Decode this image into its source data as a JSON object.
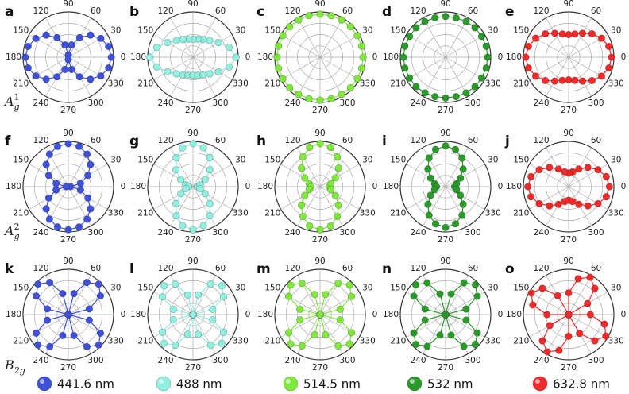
{
  "chart_data": [
    {
      "type": "polar",
      "panel": "a",
      "color": "#3f51d8",
      "theta": [
        0,
        15,
        30,
        45,
        60,
        75,
        90,
        105,
        120,
        135,
        150,
        165,
        180,
        195,
        210,
        225,
        240,
        255,
        270,
        285,
        300,
        315,
        330,
        345
      ],
      "values": [
        0.95,
        0.92,
        0.83,
        0.69,
        0.5,
        0.28,
        0.05,
        0.28,
        0.5,
        0.69,
        0.83,
        0.92,
        0.95,
        0.92,
        0.83,
        0.69,
        0.5,
        0.28,
        0.05,
        0.28,
        0.5,
        0.69,
        0.83,
        0.92
      ],
      "rlim": [
        0,
        1
      ],
      "rticks": [
        0.25,
        0.5,
        0.75,
        1
      ],
      "thetaticks": [
        0,
        30,
        60,
        90,
        120,
        150,
        180,
        210,
        240,
        270,
        300,
        330
      ]
    },
    {
      "type": "polar",
      "panel": "b",
      "color": "#8ff0e0",
      "theta": [
        0,
        15,
        30,
        45,
        60,
        75,
        90,
        105,
        120,
        135,
        150,
        165,
        180,
        195,
        210,
        225,
        240,
        255,
        270,
        285,
        300,
        315,
        330,
        345
      ],
      "values": [
        0.95,
        0.83,
        0.65,
        0.52,
        0.45,
        0.41,
        0.4,
        0.41,
        0.45,
        0.52,
        0.65,
        0.83,
        0.95,
        0.83,
        0.65,
        0.52,
        0.45,
        0.41,
        0.4,
        0.41,
        0.45,
        0.52,
        0.65,
        0.83
      ],
      "rlim": [
        0,
        1
      ],
      "rticks": [
        0.25,
        0.5,
        0.75,
        1
      ],
      "thetaticks": [
        0,
        30,
        60,
        90,
        120,
        150,
        180,
        210,
        240,
        270,
        300,
        330
      ]
    },
    {
      "type": "polar",
      "panel": "c",
      "color": "#80e83c",
      "theta": [
        0,
        15,
        30,
        45,
        60,
        75,
        90,
        105,
        120,
        135,
        150,
        165,
        180,
        195,
        210,
        225,
        240,
        255,
        270,
        285,
        300,
        315,
        330,
        345
      ],
      "values": [
        0.95,
        0.95,
        0.95,
        0.95,
        0.95,
        0.95,
        0.95,
        0.95,
        0.95,
        0.95,
        0.95,
        0.95,
        0.95,
        0.95,
        0.95,
        0.95,
        0.95,
        0.95,
        0.95,
        0.95,
        0.95,
        0.95,
        0.95,
        0.95
      ],
      "rlim": [
        0,
        1
      ],
      "rticks": [
        0.25,
        0.5,
        0.75,
        1
      ],
      "thetaticks": [
        0,
        30,
        60,
        90,
        120,
        150,
        180,
        210,
        240,
        270,
        300,
        330
      ]
    },
    {
      "type": "polar",
      "panel": "d",
      "color": "#2a9a2a",
      "theta": [
        0,
        15,
        30,
        45,
        60,
        75,
        90,
        105,
        120,
        135,
        150,
        165,
        180,
        195,
        210,
        225,
        240,
        255,
        270,
        285,
        300,
        315,
        330,
        345
      ],
      "values": [
        0.93,
        0.93,
        0.92,
        0.92,
        0.91,
        0.9,
        0.9,
        0.9,
        0.91,
        0.92,
        0.92,
        0.93,
        0.93,
        0.93,
        0.92,
        0.92,
        0.91,
        0.9,
        0.9,
        0.9,
        0.91,
        0.92,
        0.92,
        0.93
      ],
      "rlim": [
        0,
        1
      ],
      "rticks": [
        0.25,
        0.5,
        0.75,
        1
      ],
      "thetaticks": [
        0,
        30,
        60,
        90,
        120,
        150,
        180,
        210,
        240,
        270,
        300,
        330
      ]
    },
    {
      "type": "polar",
      "panel": "e",
      "color": "#ee2a2a",
      "theta": [
        0,
        15,
        30,
        45,
        60,
        75,
        90,
        105,
        120,
        135,
        150,
        165,
        180,
        195,
        210,
        225,
        240,
        255,
        270,
        285,
        300,
        315,
        330,
        345
      ],
      "values": [
        0.95,
        0.92,
        0.84,
        0.73,
        0.61,
        0.53,
        0.5,
        0.53,
        0.61,
        0.73,
        0.84,
        0.92,
        0.95,
        0.92,
        0.84,
        0.73,
        0.61,
        0.53,
        0.5,
        0.53,
        0.61,
        0.73,
        0.84,
        0.92
      ],
      "rlim": [
        0,
        1
      ],
      "rticks": [
        0.25,
        0.5,
        0.75,
        1
      ],
      "thetaticks": [
        0,
        30,
        60,
        90,
        120,
        150,
        180,
        210,
        240,
        270,
        300,
        330
      ]
    },
    {
      "type": "polar",
      "panel": "f",
      "color": "#3f51d8",
      "theta": [
        0,
        15,
        30,
        45,
        60,
        75,
        90,
        105,
        120,
        135,
        150,
        165,
        180,
        195,
        210,
        225,
        240,
        255,
        270,
        285,
        300,
        315,
        330,
        345
      ],
      "values": [
        0.05,
        0.28,
        0.5,
        0.69,
        0.83,
        0.92,
        0.95,
        0.92,
        0.83,
        0.69,
        0.5,
        0.28,
        0.05,
        0.28,
        0.5,
        0.69,
        0.83,
        0.92,
        0.95,
        0.92,
        0.83,
        0.69,
        0.5,
        0.28
      ],
      "rlim": [
        0,
        1
      ],
      "rticks": [
        0.25,
        0.5,
        0.75,
        1
      ],
      "thetaticks": [
        0,
        30,
        60,
        90,
        120,
        150,
        180,
        210,
        240,
        270,
        300,
        330
      ]
    },
    {
      "type": "polar",
      "panel": "g",
      "color": "#8ff0e0",
      "theta": [
        0,
        15,
        30,
        45,
        60,
        75,
        90,
        105,
        120,
        135,
        150,
        165,
        180,
        195,
        210,
        225,
        240,
        255,
        270,
        285,
        300,
        315,
        330,
        345
      ],
      "values": [
        0.1,
        0.16,
        0.31,
        0.53,
        0.74,
        0.89,
        0.95,
        0.89,
        0.74,
        0.53,
        0.31,
        0.16,
        0.1,
        0.16,
        0.31,
        0.53,
        0.74,
        0.89,
        0.95,
        0.89,
        0.74,
        0.53,
        0.31,
        0.16
      ],
      "rlim": [
        0,
        1
      ],
      "rticks": [
        0.25,
        0.5,
        0.75,
        1
      ],
      "thetaticks": [
        0,
        30,
        60,
        90,
        120,
        150,
        180,
        210,
        240,
        270,
        300,
        330
      ]
    },
    {
      "type": "polar",
      "panel": "h",
      "color": "#80e83c",
      "theta": [
        0,
        15,
        30,
        45,
        60,
        75,
        90,
        105,
        120,
        135,
        150,
        165,
        180,
        195,
        210,
        225,
        240,
        255,
        270,
        285,
        300,
        315,
        330,
        345
      ],
      "values": [
        0.2,
        0.25,
        0.39,
        0.58,
        0.76,
        0.9,
        0.95,
        0.9,
        0.76,
        0.58,
        0.39,
        0.25,
        0.2,
        0.25,
        0.39,
        0.58,
        0.76,
        0.9,
        0.95,
        0.9,
        0.76,
        0.58,
        0.39,
        0.25
      ],
      "rlim": [
        0,
        1
      ],
      "rticks": [
        0.25,
        0.5,
        0.75,
        1
      ],
      "thetaticks": [
        0,
        30,
        60,
        90,
        120,
        150,
        180,
        210,
        240,
        270,
        300,
        330
      ]
    },
    {
      "type": "polar",
      "panel": "i",
      "color": "#2a9a2a",
      "theta": [
        0,
        15,
        30,
        45,
        60,
        75,
        90,
        105,
        120,
        135,
        150,
        165,
        180,
        195,
        210,
        225,
        240,
        255,
        270,
        285,
        300,
        315,
        330,
        345
      ],
      "values": [
        0.2,
        0.25,
        0.38,
        0.55,
        0.73,
        0.85,
        0.9,
        0.85,
        0.73,
        0.55,
        0.38,
        0.25,
        0.2,
        0.25,
        0.38,
        0.55,
        0.73,
        0.85,
        0.9,
        0.85,
        0.73,
        0.55,
        0.38,
        0.25
      ],
      "rlim": [
        0,
        1
      ],
      "rticks": [
        0.25,
        0.5,
        0.75,
        1
      ],
      "thetaticks": [
        0,
        30,
        60,
        90,
        120,
        150,
        180,
        210,
        240,
        270,
        300,
        330
      ]
    },
    {
      "type": "polar",
      "panel": "j",
      "color": "#ee2a2a",
      "theta": [
        0,
        15,
        30,
        45,
        60,
        75,
        90,
        105,
        120,
        135,
        150,
        165,
        180,
        195,
        210,
        225,
        240,
        255,
        270,
        285,
        300,
        315,
        330,
        345
      ],
      "values": [
        0.9,
        0.86,
        0.75,
        0.6,
        0.45,
        0.34,
        0.3,
        0.34,
        0.45,
        0.6,
        0.75,
        0.86,
        0.9,
        0.86,
        0.75,
        0.6,
        0.45,
        0.34,
        0.3,
        0.34,
        0.45,
        0.6,
        0.75,
        0.86
      ],
      "rlim": [
        0,
        1
      ],
      "rticks": [
        0.25,
        0.5,
        0.75,
        1
      ],
      "thetaticks": [
        0,
        30,
        60,
        90,
        120,
        150,
        180,
        210,
        240,
        270,
        300,
        330
      ]
    },
    {
      "type": "polar",
      "panel": "k",
      "color": "#3f51d8",
      "theta": [
        0,
        15,
        30,
        45,
        60,
        75,
        90,
        105,
        120,
        135,
        150,
        165,
        180,
        195,
        210,
        225,
        240,
        255,
        270,
        285,
        300,
        315,
        330,
        345
      ],
      "values": [
        0,
        0.48,
        0.82,
        0.95,
        0.82,
        0.48,
        0,
        0.48,
        0.82,
        0.95,
        0.82,
        0.48,
        0,
        0.48,
        0.82,
        0.95,
        0.82,
        0.48,
        0,
        0.48,
        0.82,
        0.95,
        0.82,
        0.48
      ],
      "rlim": [
        0,
        1
      ],
      "rticks": [
        0.25,
        0.5,
        0.75,
        1
      ],
      "thetaticks": [
        0,
        30,
        60,
        90,
        120,
        150,
        180,
        210,
        240,
        270,
        300,
        330
      ]
    },
    {
      "type": "polar",
      "panel": "l",
      "color": "#8ff0e0",
      "theta": [
        0,
        15,
        30,
        45,
        60,
        75,
        90,
        105,
        120,
        135,
        150,
        165,
        180,
        195,
        210,
        225,
        240,
        255,
        270,
        285,
        300,
        315,
        330,
        345
      ],
      "values": [
        0,
        0.45,
        0.78,
        0.9,
        0.78,
        0.45,
        0,
        0.45,
        0.78,
        0.9,
        0.78,
        0.45,
        0,
        0.45,
        0.78,
        0.9,
        0.78,
        0.45,
        0,
        0.45,
        0.78,
        0.9,
        0.78,
        0.45
      ],
      "rlim": [
        0,
        1
      ],
      "rticks": [
        0.25,
        0.5,
        0.75,
        1
      ],
      "thetaticks": [
        0,
        30,
        60,
        90,
        120,
        150,
        180,
        210,
        240,
        270,
        300,
        330
      ]
    },
    {
      "type": "polar",
      "panel": "m",
      "color": "#80e83c",
      "theta": [
        0,
        15,
        30,
        45,
        60,
        75,
        90,
        105,
        120,
        135,
        150,
        165,
        180,
        195,
        210,
        225,
        240,
        255,
        270,
        285,
        300,
        315,
        330,
        345
      ],
      "values": [
        0,
        0.46,
        0.8,
        0.92,
        0.8,
        0.46,
        0,
        0.46,
        0.8,
        0.92,
        0.8,
        0.46,
        0,
        0.46,
        0.8,
        0.92,
        0.8,
        0.46,
        0,
        0.46,
        0.8,
        0.92,
        0.8,
        0.46
      ],
      "rlim": [
        0,
        1
      ],
      "rticks": [
        0.25,
        0.5,
        0.75,
        1
      ],
      "thetaticks": [
        0,
        30,
        60,
        90,
        120,
        150,
        180,
        210,
        240,
        270,
        300,
        330
      ]
    },
    {
      "type": "polar",
      "panel": "n",
      "color": "#2a9a2a",
      "theta": [
        0,
        15,
        30,
        45,
        60,
        75,
        90,
        105,
        120,
        135,
        150,
        165,
        180,
        195,
        210,
        225,
        240,
        255,
        270,
        285,
        300,
        315,
        330,
        345
      ],
      "values": [
        0,
        0.47,
        0.81,
        0.93,
        0.81,
        0.47,
        0,
        0.47,
        0.81,
        0.93,
        0.81,
        0.47,
        0,
        0.47,
        0.81,
        0.93,
        0.81,
        0.47,
        0,
        0.47,
        0.81,
        0.93,
        0.81,
        0.47
      ],
      "rlim": [
        0,
        1
      ],
      "rticks": [
        0.25,
        0.5,
        0.75,
        1
      ],
      "thetaticks": [
        0,
        30,
        60,
        90,
        120,
        150,
        180,
        210,
        240,
        270,
        300,
        330
      ]
    },
    {
      "type": "polar",
      "panel": "o",
      "color": "#ee2a2a",
      "theta": [
        0,
        15,
        30,
        45,
        60,
        75,
        90,
        105,
        120,
        135,
        150,
        165,
        180,
        195,
        210,
        225,
        240,
        255,
        270,
        285,
        300,
        315,
        330,
        345
      ],
      "values": [
        0.48,
        0,
        0.48,
        0.82,
        0.95,
        0.82,
        0.48,
        0,
        0.48,
        0.82,
        0.95,
        0.82,
        0.48,
        0,
        0.48,
        0.82,
        0.95,
        0.82,
        0.48,
        0,
        0.48,
        0.82,
        0.95,
        0.82
      ],
      "rlim": [
        0,
        1
      ],
      "rticks": [
        0.25,
        0.5,
        0.75,
        1
      ],
      "thetaticks": [
        0,
        30,
        60,
        90,
        120,
        150,
        180,
        210,
        240,
        270,
        300,
        330
      ]
    }
  ],
  "row_labels": [
    {
      "base": "A",
      "sub": "g",
      "sup": "1"
    },
    {
      "base": "A",
      "sub": "g",
      "sup": "2"
    },
    {
      "base": "B",
      "sub": "2g"
    }
  ],
  "legend": [
    {
      "name": "441.6 nm",
      "color": "#3f51d8"
    },
    {
      "name": "488 nm",
      "color": "#8ff0e0"
    },
    {
      "name": "514.5 nm",
      "color": "#80e83c"
    },
    {
      "name": "532 nm",
      "color": "#2a9a2a"
    },
    {
      "name": "632.8 nm",
      "color": "#ee2a2a"
    }
  ]
}
